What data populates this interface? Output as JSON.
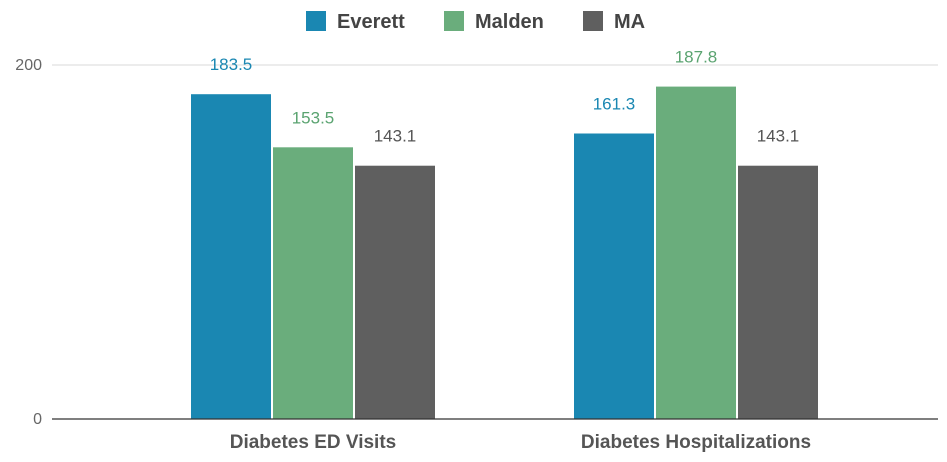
{
  "chart_data": {
    "type": "bar",
    "categories": [
      "Diabetes ED Visits",
      "Diabetes Hospitalizations"
    ],
    "series": [
      {
        "name": "Everett",
        "values": [
          183.5,
          161.3
        ],
        "labels": [
          "183.5",
          "161.3"
        ],
        "color": "#1a87b2"
      },
      {
        "name": "Malden",
        "values": [
          153.5,
          187.8
        ],
        "labels": [
          "153.5",
          "187.8"
        ],
        "color": "#6aad7c"
      },
      {
        "name": "MA",
        "values": [
          143.1,
          143.1
        ],
        "labels": [
          "143.1",
          "143.1"
        ],
        "color": "#5f5f5f"
      }
    ],
    "label_colors": [
      "#1a87b2",
      "#5aa370",
      "#555555"
    ],
    "ylim": [
      0,
      200
    ],
    "yticks": [
      0,
      200
    ],
    "ytick_labels": [
      "0",
      "200"
    ],
    "legend": "top-center",
    "grid": true,
    "title": "",
    "xlabel": "",
    "ylabel": ""
  }
}
